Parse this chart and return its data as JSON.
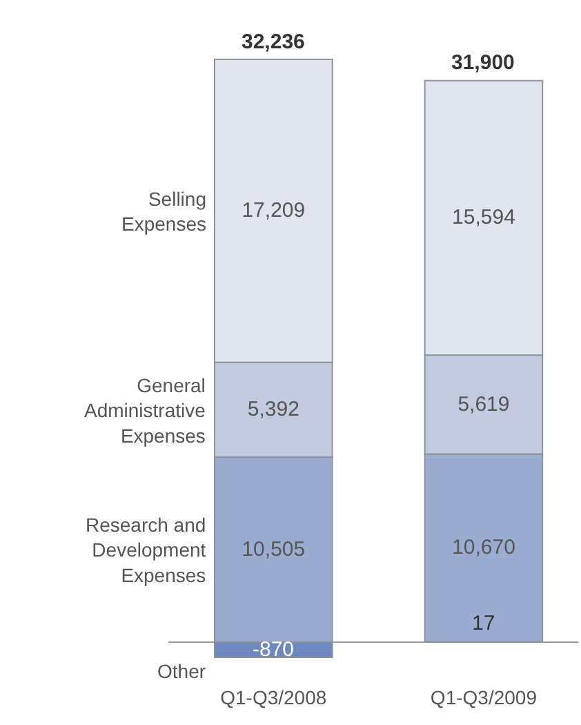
{
  "chart_data": {
    "type": "bar",
    "stacked": true,
    "categories": [
      "Q1-Q3/2008",
      "Q1-Q3/2009"
    ],
    "series": [
      {
        "name": "Other",
        "color": "#6d89bd",
        "values": [
          -870,
          17
        ],
        "value_labels": [
          "-870",
          "17"
        ]
      },
      {
        "name": "Research and Development Expenses",
        "color": "#9aadd0",
        "values": [
          10505,
          10670
        ],
        "value_labels": [
          "10,505",
          "10,670"
        ]
      },
      {
        "name": "General Administrative Expenses",
        "color": "#c2cbdf",
        "values": [
          5392,
          5619
        ],
        "value_labels": [
          "5,392",
          "5,619"
        ]
      },
      {
        "name": "Selling Expenses",
        "color": "#e0e5f0",
        "values": [
          17209,
          15594
        ],
        "value_labels": [
          "17,209",
          "15,594"
        ]
      }
    ],
    "totals": [
      "32,236",
      "31,900"
    ],
    "tick_labels": "x",
    "grid": false,
    "legend": false
  }
}
